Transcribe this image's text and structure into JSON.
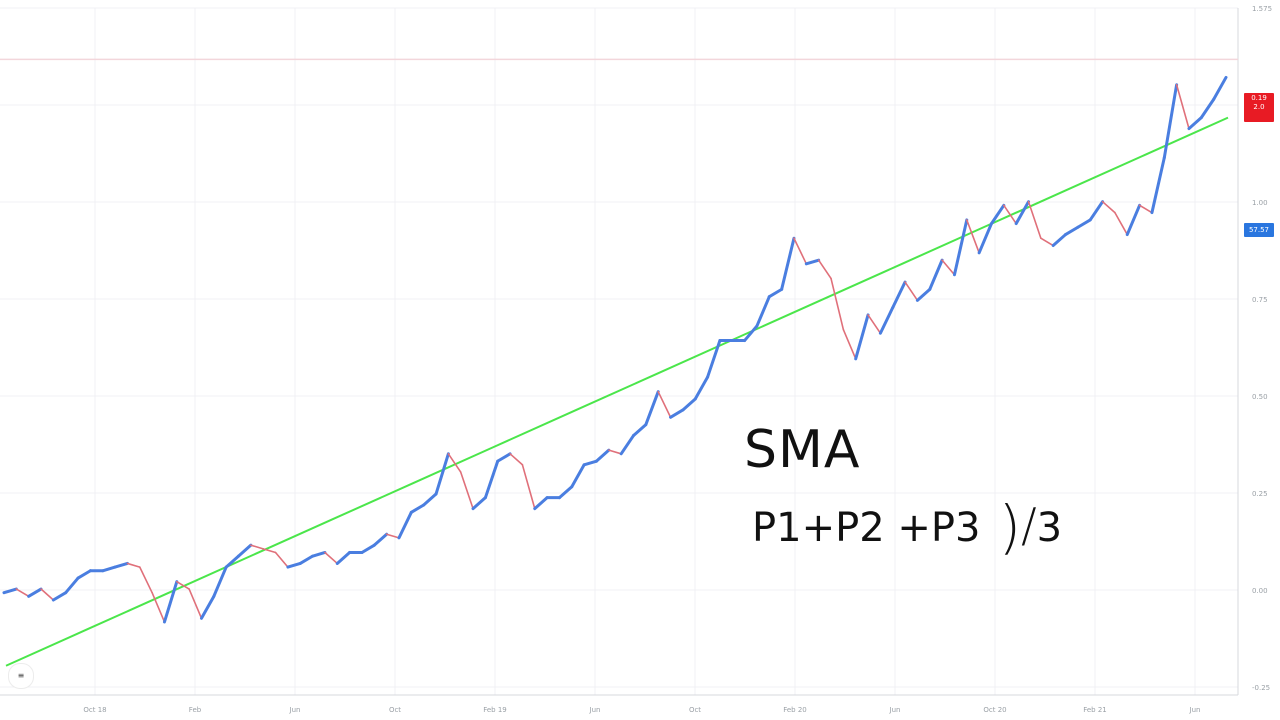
{
  "chart_data": {
    "type": "line",
    "title": "",
    "xlabel": "",
    "ylabel": "",
    "x_ticks": [
      "Oct 18",
      "Feb",
      "Jun",
      "Oct",
      "Feb 19",
      "Jun",
      "Oct",
      "Feb 20",
      "Jun",
      "Oct 20",
      "Feb 21",
      "Jun"
    ],
    "y_ticks": [
      "1.575",
      "1.25",
      "1.00",
      "0.75",
      "0.50",
      "0.25",
      "0.00",
      "-0.25"
    ],
    "ylim": [
      -0.28,
      1.6
    ],
    "grid": true,
    "series": [
      {
        "color_up": "#4a7ee0",
        "color_down": "#e0707a",
        "values": [
          0.0,
          0.01,
          -0.01,
          0.01,
          -0.02,
          0.0,
          0.04,
          0.06,
          0.06,
          0.07,
          0.08,
          0.07,
          0.0,
          -0.08,
          0.03,
          0.01,
          -0.07,
          -0.01,
          0.07,
          0.1,
          0.13,
          0.12,
          0.11,
          0.07,
          0.08,
          0.1,
          0.11,
          0.08,
          0.11,
          0.11,
          0.13,
          0.16,
          0.15,
          0.22,
          0.24,
          0.27,
          0.38,
          0.33,
          0.23,
          0.26,
          0.36,
          0.38,
          0.35,
          0.23,
          0.26,
          0.26,
          0.29,
          0.35,
          0.36,
          0.39,
          0.38,
          0.43,
          0.46,
          0.55,
          0.48,
          0.5,
          0.53,
          0.59,
          0.69,
          0.69,
          0.69,
          0.73,
          0.81,
          0.83,
          0.97,
          0.9,
          0.91,
          0.86,
          0.72,
          0.64,
          0.76,
          0.71,
          0.78,
          0.85,
          0.8,
          0.83,
          0.91,
          0.87,
          1.02,
          0.93,
          1.01,
          1.06,
          1.01,
          1.07,
          0.97,
          0.95,
          0.98,
          1.0,
          1.02,
          1.07,
          1.04,
          0.98,
          1.06,
          1.04,
          1.19,
          1.39,
          1.27,
          1.3,
          1.35,
          1.41
        ]
      },
      {
        "name": "SMA",
        "color": "#4be64b",
        "values": [
          -0.2,
          -0.1,
          0.0,
          0.1,
          0.2,
          0.3,
          0.4,
          0.5,
          0.6,
          0.7,
          0.8,
          0.9,
          1.0,
          1.1,
          1.2,
          1.3
        ]
      }
    ],
    "last_price_label": [
      "0.19",
      "2.0"
    ],
    "sma_label": "57.57"
  },
  "formula": {
    "title": "SMA",
    "expression": "P1+P2 +P3",
    "paren": ")",
    "slash": "/",
    "divisor": "3"
  },
  "corner_button_label": "≡"
}
